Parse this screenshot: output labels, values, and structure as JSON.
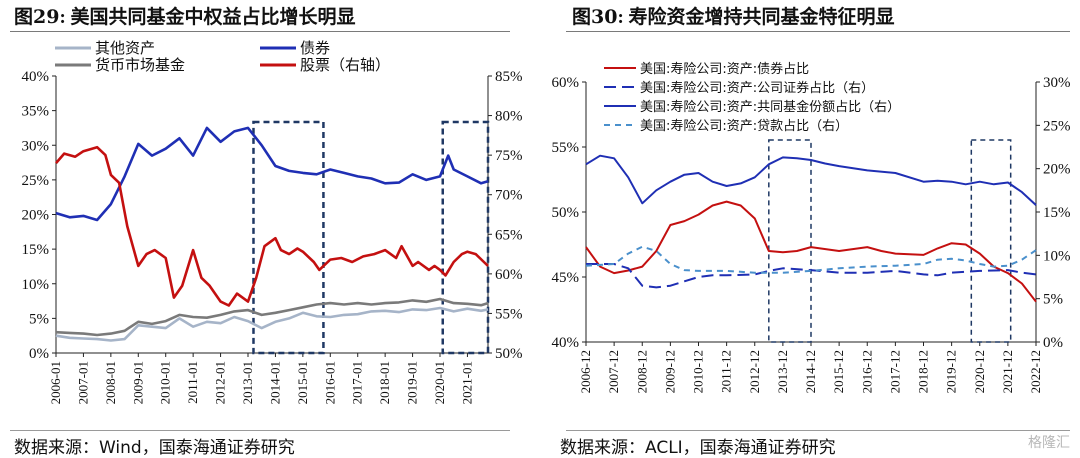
{
  "left_panel": {
    "fig_label": "图29",
    "title": "美国共同基金中权益占比增长明显",
    "source": "数据来源：Wind，国泰海通证券研究"
  },
  "right_panel": {
    "fig_label": "图30",
    "title": "寿险资金增持共同基金特征明显",
    "source": "数据来源：ACLI，国泰海通证券研究"
  },
  "watermark": "格隆汇",
  "colors": {
    "dark_blue": "#1f2fb4",
    "red": "#c41010",
    "gray_light": "#a6b4c8",
    "gray_dark": "#7a7a7a",
    "light_blue": "#4a90cc",
    "box": "#1f3864"
  },
  "chart_data": [
    {
      "type": "line",
      "id": "left",
      "x_tick_labels": [
        "2006-01",
        "2007-01",
        "2008-01",
        "2009-01",
        "2010-01",
        "2011-01",
        "2012-01",
        "2013-01",
        "2014-01",
        "2015-01",
        "2016-01",
        "2017-01",
        "2018-01",
        "2019-01",
        "2020-01",
        "2021-01"
      ],
      "xlim": [
        2006.0,
        2021.75
      ],
      "y_left": {
        "ylim": [
          0,
          40
        ],
        "ticks": [
          "0%",
          "5%",
          "10%",
          "15%",
          "20%",
          "25%",
          "30%",
          "35%",
          "40%"
        ]
      },
      "y_right": {
        "ylim": [
          50,
          85
        ],
        "ticks": [
          "50%",
          "55%",
          "60%",
          "65%",
          "70%",
          "75%",
          "80%",
          "85%"
        ]
      },
      "legend": [
        "其他资产",
        "债券",
        "货币市场基金",
        "股票（右轴）"
      ],
      "series": [
        {
          "name": "其他资产",
          "axis": "left",
          "color": "gray_light",
          "x": [
            2006.0,
            2006.5,
            2007.0,
            2007.5,
            2008.0,
            2008.5,
            2009.0,
            2009.5,
            2010.0,
            2010.5,
            2011.0,
            2011.5,
            2012.0,
            2012.5,
            2013.0,
            2013.5,
            2014.0,
            2014.5,
            2015.0,
            2015.5,
            2016.0,
            2016.5,
            2017.0,
            2017.5,
            2018.0,
            2018.5,
            2019.0,
            2019.5,
            2020.0,
            2020.5,
            2021.0,
            2021.5,
            2021.75
          ],
          "y": [
            2.5,
            2.2,
            2.1,
            2.0,
            1.8,
            2.0,
            4.0,
            3.8,
            3.6,
            5.0,
            3.8,
            4.5,
            4.3,
            5.2,
            4.6,
            3.6,
            4.5,
            5.0,
            5.8,
            5.3,
            5.2,
            5.5,
            5.6,
            6.0,
            6.1,
            5.9,
            6.3,
            6.2,
            6.5,
            6.0,
            6.4,
            6.1,
            6.3
          ]
        },
        {
          "name": "债券",
          "axis": "left",
          "color": "dark_blue",
          "x": [
            2006.0,
            2006.5,
            2007.0,
            2007.5,
            2008.0,
            2008.5,
            2009.0,
            2009.5,
            2010.0,
            2010.5,
            2011.0,
            2011.5,
            2012.0,
            2012.5,
            2013.0,
            2013.5,
            2014.0,
            2014.5,
            2015.0,
            2015.5,
            2016.0,
            2016.5,
            2017.0,
            2017.5,
            2018.0,
            2018.5,
            2019.0,
            2019.5,
            2020.0,
            2020.3,
            2020.5,
            2021.0,
            2021.5,
            2021.75
          ],
          "y": [
            20.2,
            19.6,
            19.8,
            19.2,
            21.5,
            25.5,
            30.2,
            28.5,
            29.5,
            31.0,
            28.5,
            32.5,
            30.5,
            32.0,
            32.5,
            30.0,
            27.0,
            26.3,
            26.0,
            25.8,
            26.5,
            26.0,
            25.5,
            25.2,
            24.5,
            24.6,
            25.8,
            25.0,
            25.5,
            28.5,
            26.5,
            25.5,
            24.5,
            24.8
          ]
        },
        {
          "name": "货币市场基金",
          "axis": "left",
          "color": "gray_dark",
          "x": [
            2006.0,
            2006.5,
            2007.0,
            2007.5,
            2008.0,
            2008.5,
            2009.0,
            2009.5,
            2010.0,
            2010.5,
            2011.0,
            2011.5,
            2012.0,
            2012.5,
            2013.0,
            2013.5,
            2014.0,
            2014.5,
            2015.0,
            2015.5,
            2016.0,
            2016.5,
            2017.0,
            2017.5,
            2018.0,
            2018.5,
            2019.0,
            2019.5,
            2020.0,
            2020.5,
            2021.0,
            2021.5,
            2021.75
          ],
          "y": [
            3.0,
            2.9,
            2.8,
            2.6,
            2.8,
            3.2,
            4.5,
            4.2,
            4.6,
            5.5,
            5.2,
            5.1,
            5.5,
            6.0,
            6.2,
            5.5,
            5.8,
            6.2,
            6.6,
            7.0,
            7.2,
            7.0,
            7.2,
            7.0,
            7.2,
            7.3,
            7.6,
            7.4,
            7.8,
            7.2,
            7.1,
            6.9,
            7.2
          ]
        },
        {
          "name": "股票（右轴）",
          "axis": "right",
          "color": "red",
          "x": [
            2006.0,
            2006.3,
            2006.7,
            2007.0,
            2007.5,
            2007.8,
            2008.0,
            2008.3,
            2008.6,
            2009.0,
            2009.3,
            2009.6,
            2010.0,
            2010.3,
            2010.6,
            2011.0,
            2011.3,
            2011.6,
            2012.0,
            2012.3,
            2012.6,
            2013.0,
            2013.3,
            2013.6,
            2014.0,
            2014.2,
            2014.5,
            2014.8,
            2015.0,
            2015.4,
            2015.6,
            2016.0,
            2016.4,
            2016.8,
            2017.2,
            2017.6,
            2018.0,
            2018.4,
            2018.6,
            2019.0,
            2019.2,
            2019.6,
            2019.8,
            2020.0,
            2020.2,
            2020.5,
            2020.8,
            2021.0,
            2021.3,
            2021.6,
            2021.75
          ],
          "y": [
            74.0,
            75.2,
            74.8,
            75.5,
            76.0,
            75.0,
            72.5,
            71.5,
            66.0,
            61.0,
            62.5,
            63.0,
            62.0,
            57.0,
            58.5,
            63.0,
            59.5,
            58.5,
            56.5,
            56.0,
            57.5,
            56.5,
            59.5,
            63.5,
            64.5,
            63.0,
            62.5,
            63.2,
            62.8,
            61.5,
            60.5,
            61.8,
            62.0,
            61.5,
            62.2,
            62.5,
            63.0,
            62.0,
            63.5,
            61.0,
            61.5,
            60.5,
            61.0,
            60.5,
            59.8,
            61.5,
            62.5,
            62.8,
            62.5,
            61.5,
            61.0
          ]
        }
      ],
      "highlight_ranges": [
        [
          2013.2,
          2015.75
        ],
        [
          2020.1,
          2021.75
        ]
      ]
    },
    {
      "type": "line",
      "id": "right",
      "x_tick_labels": [
        "2006-12",
        "2007-12",
        "2008-12",
        "2009-12",
        "2010-12",
        "2011-12",
        "2012-12",
        "2013-12",
        "2014-12",
        "2015-12",
        "2016-12",
        "2017-12",
        "2018-12",
        "2019-12",
        "2020-12",
        "2021-12",
        "2022-12"
      ],
      "xlim": [
        2006,
        2022
      ],
      "y_left": {
        "ylim": [
          40,
          60
        ],
        "ticks": [
          "40%",
          "45%",
          "50%",
          "55%",
          "60%"
        ]
      },
      "y_right": {
        "ylim": [
          0,
          30
        ],
        "ticks": [
          "0%",
          "5%",
          "10%",
          "15%",
          "20%",
          "25%",
          "30%"
        ]
      },
      "legend": [
        "美国:寿险公司:资产:债券占比",
        "美国:寿险公司:资产:公司证券占比（右）",
        "美国:寿险公司:资产:共同基金份额占比（右）",
        "美国:寿险公司:资产:贷款占比（右）"
      ],
      "series": [
        {
          "name": "美国:寿险公司:资产:债券占比",
          "axis": "left",
          "color": "red",
          "dash": "none",
          "x": [
            2006,
            2006.5,
            2007,
            2007.5,
            2008,
            2008.5,
            2009,
            2009.5,
            2010,
            2010.5,
            2011,
            2011.5,
            2012,
            2012.5,
            2013,
            2013.5,
            2014,
            2015,
            2016,
            2016.5,
            2017,
            2018,
            2018.5,
            2019,
            2019.5,
            2020,
            2020.5,
            2021,
            2021.5,
            2022
          ],
          "y": [
            47.3,
            45.8,
            45.3,
            45.5,
            45.8,
            47.0,
            49.0,
            49.3,
            49.8,
            50.5,
            50.8,
            50.5,
            49.5,
            47.0,
            46.9,
            47.0,
            47.3,
            47.0,
            47.3,
            47.0,
            46.8,
            46.7,
            47.2,
            47.6,
            47.5,
            46.8,
            45.8,
            45.3,
            44.5,
            43.1
          ]
        },
        {
          "name": "美国:寿险公司:资产:公司证券占比（右）",
          "axis": "right",
          "color": "dark_blue",
          "dash": "long",
          "x": [
            2006,
            2006.5,
            2007,
            2007.5,
            2008,
            2008.5,
            2009,
            2009.5,
            2010,
            2010.5,
            2011,
            2012,
            2012.5,
            2013,
            2014,
            2015,
            2016,
            2017,
            2018,
            2018.5,
            2019,
            2020,
            2021,
            2021.5,
            2022
          ],
          "y": [
            9.0,
            9.0,
            9.0,
            8.5,
            6.5,
            6.3,
            6.5,
            7.0,
            7.5,
            7.7,
            7.7,
            7.8,
            8.2,
            8.5,
            8.3,
            8.0,
            8.0,
            8.2,
            7.8,
            7.7,
            8.0,
            8.2,
            8.3,
            8.0,
            7.8
          ]
        },
        {
          "name": "美国:寿险公司:资产:共同基金份额占比（右）",
          "axis": "right",
          "color": "dark_blue",
          "dash": "none",
          "x": [
            2006,
            2006.5,
            2007,
            2007.5,
            2008,
            2008.5,
            2009,
            2009.5,
            2010,
            2010.5,
            2011,
            2011.5,
            2012,
            2012.5,
            2013,
            2013.5,
            2014,
            2014.5,
            2015,
            2016,
            2017,
            2018,
            2018.5,
            2019,
            2019.5,
            2020,
            2020.5,
            2021,
            2021.5,
            2022
          ],
          "y": [
            20.5,
            21.5,
            21.2,
            19.0,
            16.0,
            17.5,
            18.5,
            19.3,
            19.5,
            18.5,
            18.0,
            18.3,
            19.0,
            20.5,
            21.3,
            21.2,
            21.0,
            20.6,
            20.3,
            19.8,
            19.5,
            18.5,
            18.6,
            18.5,
            18.2,
            18.5,
            18.2,
            18.4,
            17.3,
            15.8
          ]
        },
        {
          "name": "美国:寿险公司:资产:贷款占比（右）",
          "axis": "right",
          "color": "light_blue",
          "dash": "short",
          "x": [
            2006,
            2006.5,
            2007,
            2007.5,
            2008,
            2008.5,
            2009,
            2009.5,
            2010,
            2011,
            2012,
            2012.5,
            2013,
            2014,
            2015,
            2016,
            2017,
            2018,
            2018.5,
            2019,
            2019.5,
            2020,
            2020.5,
            2021,
            2021.5,
            2022
          ],
          "y": [
            8.8,
            8.9,
            9.0,
            10.2,
            11.0,
            10.5,
            9.0,
            8.3,
            8.2,
            8.2,
            8.0,
            8.0,
            8.0,
            8.2,
            8.5,
            8.7,
            8.8,
            9.0,
            9.5,
            9.6,
            9.4,
            9.0,
            8.7,
            8.8,
            9.5,
            10.6
          ]
        }
      ],
      "highlight_ranges": [
        [
          2012.5,
          2014.0
        ],
        [
          2019.7,
          2021.1
        ]
      ]
    }
  ]
}
